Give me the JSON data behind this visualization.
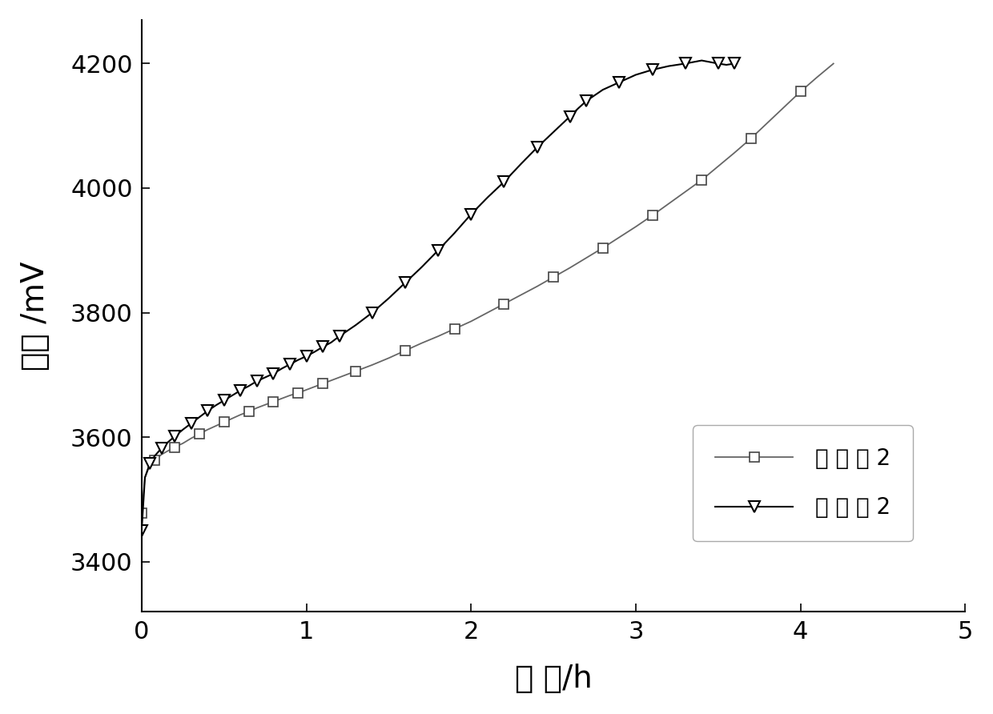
{
  "xlabel": "时 间/h",
  "ylabel": "电压 /mV",
  "xlim": [
    0,
    5
  ],
  "ylim": [
    3320,
    4270
  ],
  "xticks": [
    0,
    1,
    2,
    3,
    4,
    5
  ],
  "yticks": [
    3400,
    3600,
    3800,
    4000,
    4200
  ],
  "legend1": "对 比 例 2",
  "legend2": "实 施 例 2",
  "background_color": "#ffffff",
  "series1_x": [
    0.0,
    0.02,
    0.05,
    0.08,
    0.12,
    0.16,
    0.2,
    0.25,
    0.3,
    0.35,
    0.4,
    0.45,
    0.5,
    0.55,
    0.6,
    0.65,
    0.7,
    0.75,
    0.8,
    0.85,
    0.9,
    0.95,
    1.0,
    1.05,
    1.1,
    1.15,
    1.2,
    1.3,
    1.4,
    1.5,
    1.6,
    1.7,
    1.8,
    1.9,
    2.0,
    2.1,
    2.2,
    2.3,
    2.4,
    2.5,
    2.6,
    2.7,
    2.8,
    2.9,
    3.0,
    3.1,
    3.2,
    3.3,
    3.4,
    3.5,
    3.6,
    3.7,
    3.8,
    3.9,
    4.0,
    4.1,
    4.2
  ],
  "series1_y": [
    3478,
    3535,
    3555,
    3563,
    3572,
    3578,
    3584,
    3590,
    3598,
    3605,
    3612,
    3618,
    3624,
    3630,
    3636,
    3641,
    3647,
    3652,
    3657,
    3662,
    3667,
    3671,
    3676,
    3681,
    3686,
    3691,
    3696,
    3706,
    3716,
    3727,
    3739,
    3751,
    3762,
    3774,
    3786,
    3800,
    3814,
    3828,
    3842,
    3857,
    3872,
    3888,
    3904,
    3921,
    3938,
    3956,
    3975,
    3994,
    4013,
    4035,
    4057,
    4080,
    4105,
    4130,
    4155,
    4178,
    4200
  ],
  "series2_x": [
    0.0,
    0.02,
    0.05,
    0.08,
    0.12,
    0.16,
    0.2,
    0.25,
    0.3,
    0.35,
    0.4,
    0.45,
    0.5,
    0.55,
    0.6,
    0.65,
    0.7,
    0.75,
    0.8,
    0.85,
    0.9,
    0.95,
    1.0,
    1.05,
    1.1,
    1.15,
    1.2,
    1.3,
    1.4,
    1.5,
    1.6,
    1.7,
    1.8,
    1.9,
    2.0,
    2.1,
    2.2,
    2.3,
    2.4,
    2.5,
    2.6,
    2.65,
    2.7,
    2.8,
    2.9,
    3.0,
    3.1,
    3.2,
    3.3,
    3.4,
    3.5,
    3.55,
    3.6
  ],
  "series2_y": [
    3450,
    3535,
    3558,
    3570,
    3582,
    3592,
    3601,
    3612,
    3622,
    3632,
    3642,
    3651,
    3659,
    3667,
    3675,
    3682,
    3690,
    3696,
    3702,
    3710,
    3717,
    3724,
    3730,
    3737,
    3745,
    3752,
    3762,
    3780,
    3800,
    3823,
    3848,
    3873,
    3900,
    3928,
    3958,
    3985,
    4010,
    4038,
    4065,
    4090,
    4115,
    4128,
    4140,
    4158,
    4170,
    4182,
    4190,
    4196,
    4200,
    4205,
    4200,
    4198,
    4200
  ],
  "markevery1": 3,
  "markevery2": 2
}
